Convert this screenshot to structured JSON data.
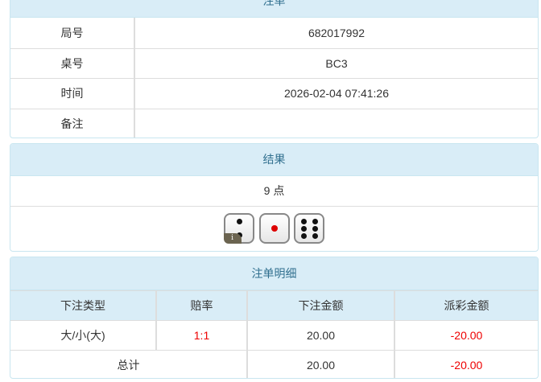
{
  "order": {
    "title": "注单",
    "rows": [
      {
        "label": "局号",
        "value": "682017992"
      },
      {
        "label": "桌号",
        "value": "BC3"
      },
      {
        "label": "时间",
        "value": "2026-02-04 07:41:26"
      },
      {
        "label": "备注",
        "value": ""
      }
    ]
  },
  "result": {
    "title": "结果",
    "points": "9 点",
    "dice": [
      2,
      1,
      6
    ],
    "info_badge": "i"
  },
  "detail": {
    "title": "注单明细",
    "headers": [
      "下注类型",
      "赔率",
      "下注金额",
      "派彩金额"
    ],
    "rows": [
      {
        "type": "大/小(大)",
        "odds": "1:1",
        "bet": "20.00",
        "payout": "-20.00"
      }
    ],
    "total": {
      "label": "总计",
      "bet": "20.00",
      "payout": "-20.00"
    }
  },
  "colors": {
    "header_bg": "#d9edf7",
    "header_text": "#31708f",
    "negative": "#e00000"
  }
}
